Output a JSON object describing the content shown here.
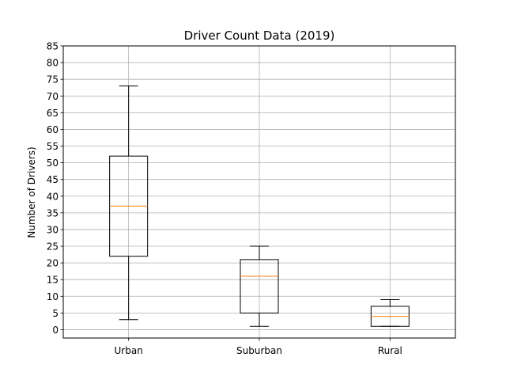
{
  "chart_data": {
    "type": "box",
    "title": "Driver Count Data (2019)",
    "xlabel": "",
    "ylabel": "Number of Drivers)",
    "ylim": [
      -2.5,
      85
    ],
    "yticks": [
      0,
      5,
      10,
      15,
      20,
      25,
      30,
      35,
      40,
      45,
      50,
      55,
      60,
      65,
      70,
      75,
      80,
      85
    ],
    "grid": true,
    "categories": [
      "Urban",
      "Suburban",
      "Rural"
    ],
    "boxes": [
      {
        "name": "Urban",
        "whisker_low": 3,
        "q1": 22,
        "median": 37,
        "q3": 52,
        "whisker_high": 73
      },
      {
        "name": "Suburban",
        "whisker_low": 1,
        "q1": 5,
        "median": 16,
        "q3": 21,
        "whisker_high": 25
      },
      {
        "name": "Rural",
        "whisker_low": 1,
        "q1": 1,
        "median": 4,
        "q3": 7,
        "whisker_high": 9
      }
    ],
    "colors": {
      "box": "#000000",
      "median": "#ff7f0e",
      "grid": "#b0b0b0"
    }
  }
}
